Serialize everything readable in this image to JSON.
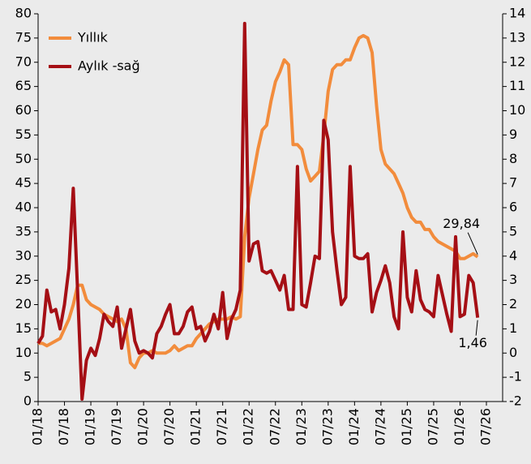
{
  "chart_data": {
    "type": "line",
    "categories": [
      "01/18",
      null,
      null,
      null,
      null,
      null,
      "07/18",
      null,
      null,
      null,
      null,
      null,
      "01/19",
      null,
      null,
      null,
      null,
      null,
      "07/19",
      null,
      null,
      null,
      null,
      null,
      "01/20",
      null,
      null,
      null,
      null,
      null,
      "07/20",
      null,
      null,
      null,
      null,
      null,
      "01/21",
      null,
      null,
      null,
      null,
      null,
      "07/21",
      null,
      null,
      null,
      null,
      null,
      "01/22",
      null,
      null,
      null,
      null,
      null,
      "07/22",
      null,
      null,
      null,
      null,
      null,
      "01/23",
      null,
      null,
      null,
      null,
      null,
      "07/23",
      null,
      null,
      null,
      null,
      null,
      "01/24",
      null,
      null,
      null,
      null,
      null,
      "07/24",
      null,
      null,
      null,
      null,
      null,
      "01/25",
      null,
      null,
      null,
      null,
      null,
      "07/25",
      null,
      null,
      null,
      null,
      null,
      "01/26",
      null,
      null,
      null,
      null,
      null,
      "07/26"
    ],
    "series": [
      {
        "name": "Yıllık",
        "color": "#f28c3c",
        "values": [
          12,
          12,
          11.5,
          12,
          12.5,
          13,
          15,
          17,
          20,
          24,
          24,
          21,
          20,
          19.5,
          19,
          18,
          17.5,
          17,
          16.5,
          17,
          15,
          8,
          7,
          9,
          10,
          10,
          10.5,
          10,
          10,
          10,
          10.5,
          11.5,
          10.5,
          11,
          11.5,
          11.5,
          13,
          14,
          15,
          16,
          16.5,
          17,
          17,
          17,
          17.5,
          17,
          17.5,
          34,
          42,
          47,
          52,
          56,
          57,
          62,
          66,
          68,
          70.5,
          69.5,
          53,
          53,
          52,
          48,
          45.5,
          46.5,
          47.5,
          55,
          64,
          68.5,
          69.5,
          69.5,
          70.5,
          70.5,
          73,
          75,
          75.5,
          75,
          72,
          61,
          52,
          49,
          48,
          47,
          45,
          43,
          40,
          38,
          37,
          37,
          35.5,
          35.5,
          34,
          33,
          32.5,
          32,
          31.5,
          31,
          29.5,
          29.5,
          30,
          30.5,
          29.84,
          null,
          null
        ],
        "value_labels": [
          null,
          null,
          null,
          null,
          null,
          null,
          null,
          null,
          null,
          null,
          null,
          null,
          null,
          null,
          null,
          null,
          null,
          null,
          null,
          null,
          null,
          null,
          null,
          null,
          null,
          null,
          null,
          null,
          null,
          null,
          null,
          null,
          null,
          null,
          null,
          null,
          null,
          null,
          null,
          null,
          null,
          null,
          null,
          null,
          null,
          null,
          null,
          null,
          null,
          null,
          null,
          null,
          null,
          null,
          null,
          null,
          null,
          null,
          null,
          null,
          null,
          null,
          null,
          null,
          null,
          null,
          null,
          null,
          null,
          null,
          null,
          null,
          null,
          null,
          null,
          null,
          null,
          null,
          null,
          null,
          null,
          null,
          null,
          null,
          null,
          null,
          null,
          null,
          null,
          null,
          null,
          null,
          null,
          null,
          null,
          null,
          null,
          null,
          null,
          null,
          "29,84",
          null,
          null
        ]
      },
      {
        "name": "Aylık -sağ",
        "color": "#a50f15",
        "axis": "y2",
        "values": [
          0.4,
          0.7,
          2.6,
          1.7,
          1.8,
          1.0,
          2.0,
          3.5,
          6.8,
          2.5,
          -1.9,
          -0.3,
          0.2,
          -0.1,
          0.6,
          1.6,
          1.3,
          1.1,
          1.9,
          0.2,
          1.0,
          1.8,
          0.5,
          0.0,
          0.1,
          0.0,
          -0.2,
          0.8,
          1.1,
          1.6,
          2.0,
          0.8,
          0.8,
          1.1,
          1.7,
          1.9,
          1.0,
          1.1,
          0.5,
          0.9,
          1.6,
          1.0,
          2.5,
          0.6,
          1.4,
          1.8,
          2.6,
          13.6,
          3.8,
          4.5,
          4.6,
          3.4,
          3.3,
          3.4,
          3.0,
          2.6,
          3.2,
          1.8,
          1.8,
          7.7,
          2.0,
          1.9,
          2.9,
          4.0,
          3.9,
          9.6,
          8.8,
          5.0,
          3.4,
          2.0,
          2.3,
          7.7,
          4.0,
          3.9,
          3.9,
          4.1,
          1.7,
          2.5,
          3.0,
          3.6,
          2.9,
          1.5,
          1.0,
          5.0,
          2.3,
          1.7,
          3.4,
          2.2,
          1.8,
          1.7,
          1.5,
          3.2,
          2.4,
          1.6,
          0.9,
          4.8,
          1.5,
          1.6,
          3.2,
          2.9,
          1.46,
          null,
          null
        ],
        "value_labels": [
          null,
          null,
          null,
          null,
          null,
          null,
          null,
          null,
          null,
          null,
          null,
          null,
          null,
          null,
          null,
          null,
          null,
          null,
          null,
          null,
          null,
          null,
          null,
          null,
          null,
          null,
          null,
          null,
          null,
          null,
          null,
          null,
          null,
          null,
          null,
          null,
          null,
          null,
          null,
          null,
          null,
          null,
          null,
          null,
          null,
          null,
          null,
          null,
          null,
          null,
          null,
          null,
          null,
          null,
          null,
          null,
          null,
          null,
          null,
          null,
          null,
          null,
          null,
          null,
          null,
          null,
          null,
          null,
          null,
          null,
          null,
          null,
          null,
          null,
          null,
          null,
          null,
          null,
          null,
          null,
          null,
          null,
          null,
          null,
          null,
          null,
          null,
          null,
          null,
          null,
          null,
          null,
          null,
          null,
          null,
          null,
          null,
          null,
          null,
          null,
          "1,46",
          null,
          null
        ]
      }
    ],
    "ylim": [
      0,
      80
    ],
    "yticks": [
      0,
      5,
      10,
      15,
      20,
      25,
      30,
      35,
      40,
      45,
      50,
      55,
      60,
      65,
      70,
      75,
      80
    ],
    "y2lim": [
      -2,
      14
    ],
    "y2ticks": [
      -2,
      -1,
      0,
      1,
      2,
      3,
      4,
      5,
      6,
      7,
      8,
      9,
      10,
      11,
      12,
      13,
      14
    ],
    "legend": "upper left"
  }
}
